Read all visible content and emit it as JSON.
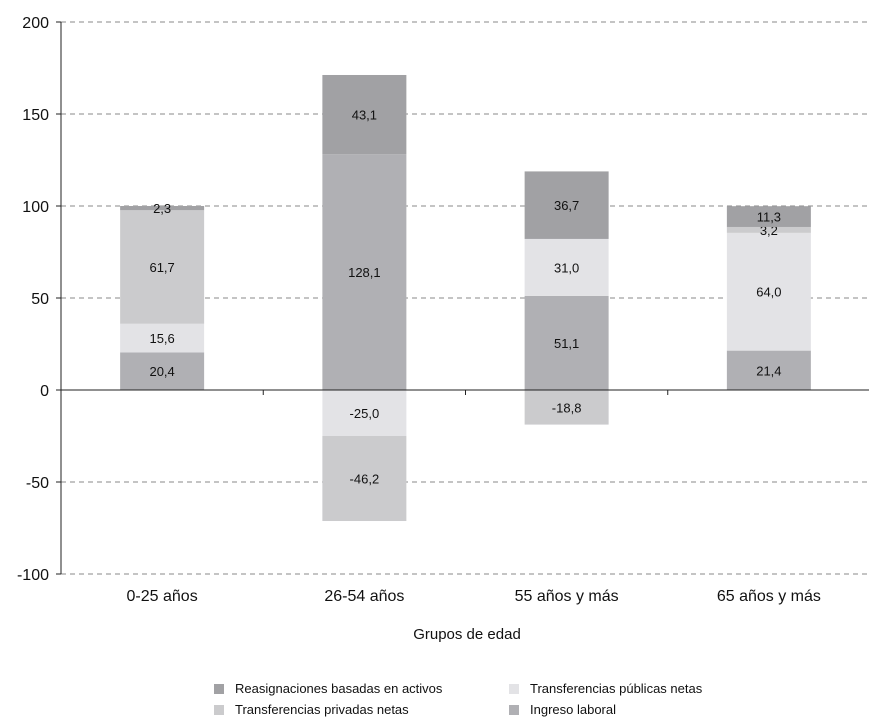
{
  "chart_data": {
    "type": "bar",
    "stacked": true,
    "categories": [
      "0-25 años",
      "26-54 años",
      "55 años y más",
      "65 años y más"
    ],
    "xlabel": "Grupos de edad",
    "ylim": [
      -100,
      200
    ],
    "yticks": [
      200,
      150,
      100,
      50,
      0,
      -50,
      -100
    ],
    "grid": true,
    "legend_position": "bottom",
    "series": [
      {
        "name": "Ingreso laboral",
        "color": "#b0b0b4",
        "values": [
          20.4,
          128.1,
          51.1,
          21.4
        ],
        "labels": [
          "20,4",
          "128,1",
          "51,1",
          "21,4"
        ]
      },
      {
        "name": "Transferencias públicas netas",
        "color": "#e3e3e6",
        "values": [
          15.6,
          -25.0,
          31.0,
          64.0
        ],
        "labels": [
          "15,6",
          "-25,0",
          "31,0",
          "64,0"
        ]
      },
      {
        "name": "Transferencias privadas netas",
        "color": "#cbcbcd",
        "values": [
          61.7,
          -46.2,
          -18.8,
          3.2
        ],
        "labels": [
          "61,7",
          "-46,2",
          "-18,8",
          "3,2"
        ]
      },
      {
        "name": "Reasignaciones basadas en activos",
        "color": "#a1a1a4",
        "values": [
          2.3,
          43.1,
          36.7,
          11.3
        ],
        "labels": [
          "2,3",
          "43,1",
          "36,7",
          "11,3"
        ]
      }
    ]
  }
}
